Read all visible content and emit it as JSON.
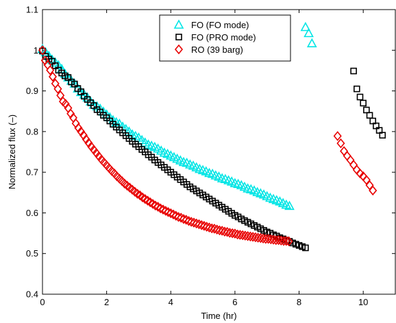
{
  "chart_data": {
    "type": "scatter",
    "title": "",
    "xlabel": "Time (hr)",
    "ylabel": "Normalized flux (–)",
    "xlim": [
      0,
      11
    ],
    "ylim": [
      0.4,
      1.1
    ],
    "xticks": [
      0,
      2,
      4,
      6,
      8,
      10
    ],
    "xtick_labels": [
      "0",
      "2",
      "4",
      "6",
      "8",
      "10"
    ],
    "yticks": [
      0.4,
      0.5,
      0.6,
      0.7,
      0.8,
      0.9,
      1.0,
      1.1
    ],
    "ytick_labels": [
      "0.4",
      "0.5",
      "0.6",
      "0.7",
      "0.8",
      "0.9",
      "1",
      "1.1"
    ],
    "grid": false,
    "legend_position": "top-center",
    "series": [
      {
        "name": "FO (FO mode)",
        "marker": "triangle",
        "color": "#00e5e5",
        "x": [
          0.0,
          0.1,
          0.2,
          0.3,
          0.4,
          0.5,
          0.6,
          0.7,
          0.8,
          0.9,
          1.0,
          1.1,
          1.2,
          1.3,
          1.4,
          1.5,
          1.6,
          1.7,
          1.8,
          1.9,
          2.0,
          2.1,
          2.2,
          2.3,
          2.4,
          2.5,
          2.6,
          2.7,
          2.8,
          2.9,
          3.0,
          3.1,
          3.2,
          3.3,
          3.4,
          3.5,
          3.6,
          3.7,
          3.8,
          3.9,
          4.0,
          4.1,
          4.2,
          4.3,
          4.4,
          4.5,
          4.6,
          4.7,
          4.8,
          4.9,
          5.0,
          5.1,
          5.2,
          5.3,
          5.4,
          5.5,
          5.6,
          5.7,
          5.8,
          5.9,
          6.0,
          6.1,
          6.2,
          6.3,
          6.4,
          6.5,
          6.6,
          6.7,
          6.8,
          6.9,
          7.0,
          7.1,
          7.2,
          7.3,
          7.4,
          7.5,
          7.6,
          7.7,
          8.2,
          8.3,
          8.4
        ],
        "y": [
          1.003,
          0.995,
          0.986,
          0.977,
          0.97,
          0.963,
          0.954,
          0.942,
          0.933,
          0.925,
          0.918,
          0.906,
          0.897,
          0.891,
          0.884,
          0.874,
          0.866,
          0.862,
          0.856,
          0.849,
          0.842,
          0.835,
          0.828,
          0.823,
          0.819,
          0.812,
          0.806,
          0.8,
          0.793,
          0.789,
          0.785,
          0.779,
          0.773,
          0.768,
          0.765,
          0.762,
          0.758,
          0.753,
          0.748,
          0.745,
          0.741,
          0.737,
          0.733,
          0.729,
          0.725,
          0.723,
          0.719,
          0.716,
          0.712,
          0.708,
          0.705,
          0.702,
          0.698,
          0.696,
          0.692,
          0.689,
          0.685,
          0.683,
          0.68,
          0.677,
          0.673,
          0.671,
          0.668,
          0.664,
          0.66,
          0.658,
          0.655,
          0.651,
          0.648,
          0.645,
          0.641,
          0.637,
          0.634,
          0.631,
          0.628,
          0.624,
          0.62,
          0.617,
          1.057,
          1.042,
          1.017
        ]
      },
      {
        "name": "FO (PRO mode)",
        "marker": "square",
        "color": "#000000",
        "x": [
          0.0,
          0.1,
          0.2,
          0.3,
          0.4,
          0.5,
          0.6,
          0.7,
          0.8,
          0.9,
          1.0,
          1.1,
          1.2,
          1.3,
          1.4,
          1.5,
          1.6,
          1.7,
          1.8,
          1.9,
          2.0,
          2.1,
          2.2,
          2.3,
          2.4,
          2.5,
          2.6,
          2.7,
          2.8,
          2.9,
          3.0,
          3.1,
          3.2,
          3.3,
          3.4,
          3.5,
          3.6,
          3.7,
          3.8,
          3.9,
          4.0,
          4.1,
          4.2,
          4.3,
          4.4,
          4.5,
          4.6,
          4.7,
          4.8,
          4.9,
          5.0,
          5.1,
          5.2,
          5.3,
          5.4,
          5.5,
          5.6,
          5.7,
          5.8,
          5.9,
          6.0,
          6.1,
          6.2,
          6.3,
          6.4,
          6.5,
          6.6,
          6.7,
          6.8,
          6.9,
          7.0,
          7.1,
          7.2,
          7.3,
          7.4,
          7.5,
          7.6,
          7.7,
          7.8,
          7.9,
          8.0,
          8.1,
          8.2,
          9.7,
          9.8,
          9.9,
          10.0,
          10.1,
          10.2,
          10.3,
          10.4,
          10.5,
          10.6
        ],
        "y": [
          0.998,
          0.985,
          0.978,
          0.973,
          0.962,
          0.951,
          0.944,
          0.937,
          0.933,
          0.922,
          0.917,
          0.906,
          0.898,
          0.887,
          0.879,
          0.871,
          0.864,
          0.854,
          0.848,
          0.84,
          0.834,
          0.826,
          0.818,
          0.811,
          0.804,
          0.797,
          0.79,
          0.783,
          0.776,
          0.769,
          0.763,
          0.756,
          0.75,
          0.743,
          0.737,
          0.73,
          0.724,
          0.718,
          0.712,
          0.706,
          0.7,
          0.694,
          0.688,
          0.682,
          0.676,
          0.67,
          0.664,
          0.659,
          0.654,
          0.649,
          0.644,
          0.639,
          0.634,
          0.629,
          0.624,
          0.619,
          0.614,
          0.609,
          0.604,
          0.599,
          0.594,
          0.59,
          0.585,
          0.581,
          0.577,
          0.573,
          0.569,
          0.565,
          0.561,
          0.557,
          0.553,
          0.55,
          0.546,
          0.543,
          0.539,
          0.536,
          0.533,
          0.53,
          0.526,
          0.523,
          0.52,
          0.517,
          0.514,
          0.949,
          0.905,
          0.885,
          0.87,
          0.853,
          0.84,
          0.826,
          0.814,
          0.803,
          0.791
        ]
      },
      {
        "name": "RO (39 barg)",
        "marker": "diamond",
        "color": "#e80000",
        "x": [
          0.0,
          0.08,
          0.16,
          0.24,
          0.32,
          0.4,
          0.48,
          0.56,
          0.64,
          0.72,
          0.8,
          0.88,
          0.96,
          1.04,
          1.12,
          1.2,
          1.28,
          1.36,
          1.44,
          1.52,
          1.6,
          1.68,
          1.76,
          1.84,
          1.92,
          2.0,
          2.08,
          2.16,
          2.24,
          2.32,
          2.4,
          2.48,
          2.56,
          2.64,
          2.72,
          2.8,
          2.88,
          2.96,
          3.04,
          3.12,
          3.2,
          3.28,
          3.36,
          3.44,
          3.52,
          3.6,
          3.68,
          3.76,
          3.84,
          3.92,
          4.0,
          4.08,
          4.16,
          4.24,
          4.32,
          4.4,
          4.48,
          4.56,
          4.64,
          4.72,
          4.8,
          4.88,
          4.96,
          5.04,
          5.12,
          5.2,
          5.28,
          5.36,
          5.44,
          5.52,
          5.6,
          5.68,
          5.76,
          5.84,
          5.92,
          6.0,
          6.08,
          6.16,
          6.24,
          6.32,
          6.4,
          6.48,
          6.56,
          6.64,
          6.72,
          6.8,
          6.88,
          6.96,
          7.04,
          7.12,
          7.2,
          7.28,
          7.36,
          7.44,
          7.52,
          7.6,
          7.68,
          9.2,
          9.3,
          9.4,
          9.5,
          9.6,
          9.7,
          9.8,
          9.9,
          10.0,
          10.1,
          10.2,
          10.3
        ],
        "y": [
          1.0,
          0.975,
          0.964,
          0.951,
          0.935,
          0.918,
          0.905,
          0.889,
          0.874,
          0.868,
          0.858,
          0.844,
          0.834,
          0.82,
          0.809,
          0.8,
          0.791,
          0.781,
          0.772,
          0.763,
          0.755,
          0.747,
          0.739,
          0.731,
          0.724,
          0.717,
          0.71,
          0.703,
          0.697,
          0.69,
          0.684,
          0.678,
          0.672,
          0.667,
          0.662,
          0.657,
          0.652,
          0.647,
          0.643,
          0.638,
          0.634,
          0.63,
          0.626,
          0.622,
          0.618,
          0.615,
          0.611,
          0.608,
          0.605,
          0.602,
          0.599,
          0.596,
          0.593,
          0.59,
          0.588,
          0.585,
          0.583,
          0.58,
          0.578,
          0.576,
          0.574,
          0.572,
          0.57,
          0.568,
          0.566,
          0.564,
          0.562,
          0.561,
          0.559,
          0.557,
          0.556,
          0.554,
          0.553,
          0.551,
          0.55,
          0.549,
          0.547,
          0.546,
          0.545,
          0.544,
          0.543,
          0.542,
          0.541,
          0.54,
          0.539,
          0.538,
          0.537,
          0.536,
          0.536,
          0.535,
          0.534,
          0.533,
          0.533,
          0.532,
          0.531,
          0.531,
          0.53,
          0.789,
          0.771,
          0.752,
          0.74,
          0.73,
          0.718,
          0.706,
          0.697,
          0.69,
          0.681,
          0.668,
          0.655
        ]
      }
    ]
  }
}
